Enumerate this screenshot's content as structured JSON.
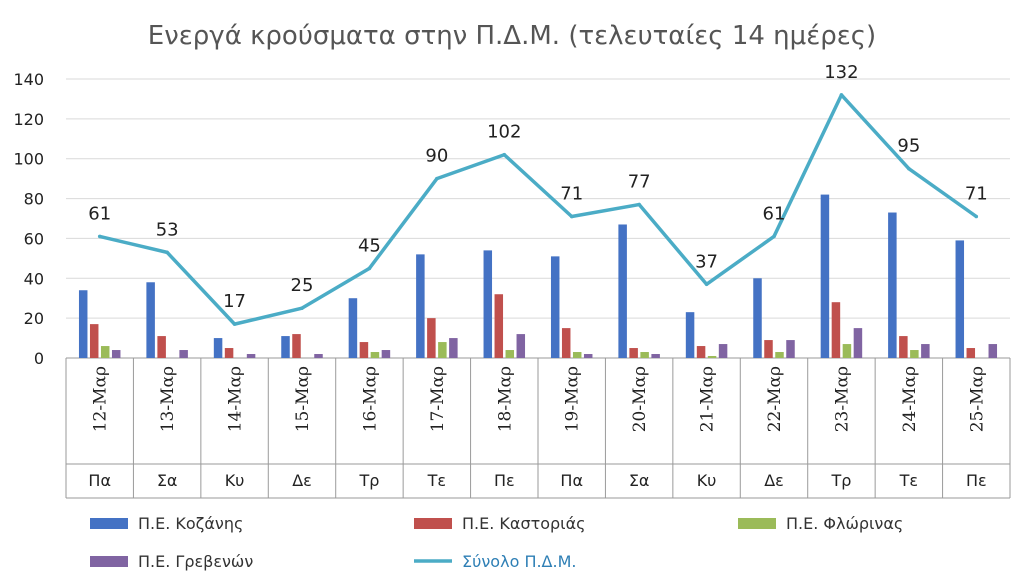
{
  "chart_data": {
    "type": "bar",
    "title": "Ενεργά κρούσματα στην Π.Δ.Μ. (τελευταίες 14 ημέρες)",
    "xlabel": "",
    "ylabel": "",
    "ylim": [
      0,
      140
    ],
    "yticks": [
      "0",
      "20",
      "40",
      "60",
      "80",
      "100",
      "120",
      "140"
    ],
    "grid": true,
    "legend": "bottom",
    "categories": [
      "12-Μαρ",
      "13-Μαρ",
      "14-Μαρ",
      "15-Μαρ",
      "16-Μαρ",
      "17-Μαρ",
      "18-Μαρ",
      "19-Μαρ",
      "20-Μαρ",
      "21-Μαρ",
      "22-Μαρ",
      "23-Μαρ",
      "24-Μαρ",
      "25-Μαρ"
    ],
    "days": [
      "Πα",
      "Σα",
      "Κυ",
      "Δε",
      "Τρ",
      "Τε",
      "Πε",
      "Πα",
      "Σα",
      "Κυ",
      "Δε",
      "Τρ",
      "Τε",
      "Πε"
    ],
    "series": [
      {
        "name": "Π.Ε. Κοζάνης",
        "type": "bar",
        "color": "#4472c4",
        "values": [
          34,
          38,
          10,
          11,
          30,
          52,
          54,
          51,
          67,
          23,
          40,
          82,
          73,
          59
        ]
      },
      {
        "name": "Π.Ε. Καστοριάς",
        "type": "bar",
        "color": "#c0504d",
        "values": [
          17,
          11,
          5,
          12,
          8,
          20,
          32,
          15,
          5,
          6,
          9,
          28,
          11,
          5
        ]
      },
      {
        "name": "Π.Ε. Φλώρινας",
        "type": "bar",
        "color": "#9bbb59",
        "values": [
          6,
          0,
          0,
          0,
          3,
          8,
          4,
          3,
          3,
          1,
          3,
          7,
          4,
          0
        ]
      },
      {
        "name": "Π.Ε. Γρεβενών",
        "type": "bar",
        "color": "#8064a2",
        "values": [
          4,
          4,
          2,
          2,
          4,
          10,
          12,
          2,
          2,
          7,
          9,
          15,
          7,
          7
        ]
      },
      {
        "name": "Σύνολο Π.Δ.Μ.",
        "type": "line",
        "color": "#4bacc6",
        "values": [
          61,
          53,
          17,
          25,
          45,
          90,
          102,
          71,
          77,
          37,
          61,
          132,
          95,
          71
        ],
        "labels": [
          "61",
          "53",
          "17",
          "25",
          "45",
          "90",
          "102",
          "71",
          "77",
          "37",
          "61",
          "132",
          "95",
          "71"
        ]
      }
    ]
  }
}
